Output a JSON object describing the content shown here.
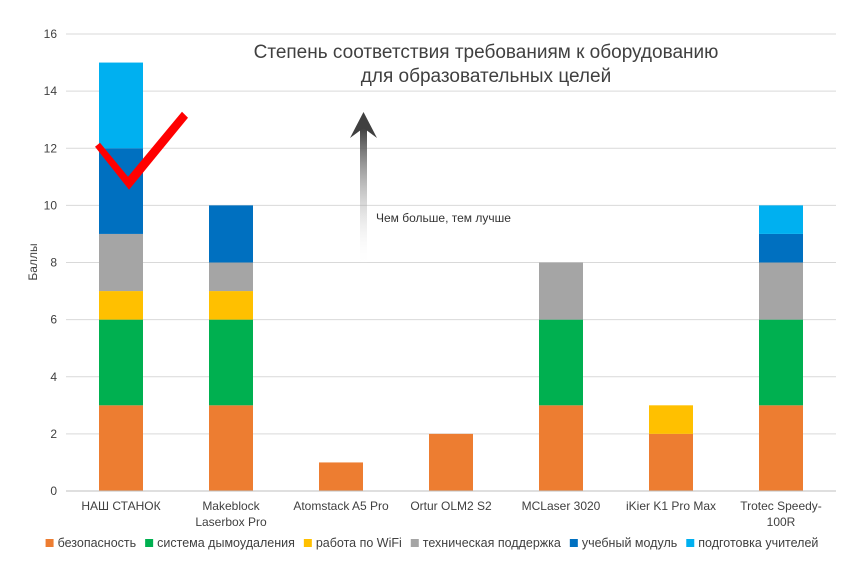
{
  "chart_data": {
    "type": "bar",
    "stacked": true,
    "title_lines": [
      "Степень соответствия требованиям к оборудованию",
      "для образовательных целей"
    ],
    "annotation": "Чем больше, тем лучше",
    "ylabel": "Баллы",
    "xlabel": "",
    "ylim": [
      0,
      16
    ],
    "yticks": [
      0,
      2,
      4,
      6,
      8,
      10,
      12,
      14,
      16
    ],
    "grid": true,
    "legend_position": "bottom",
    "categories": [
      [
        "НАШ СТАНОК"
      ],
      [
        "Makeblock",
        "Laserbox Pro"
      ],
      [
        "Atomstack A5 Pro"
      ],
      [
        "Ortur OLM2 S2"
      ],
      [
        "MCLaser 3020"
      ],
      [
        "iKier K1 Pro Max"
      ],
      [
        "Trotec Speedy-",
        "100R"
      ]
    ],
    "series": [
      {
        "name": "безопасность",
        "color": "#ED7D31",
        "values": [
          3,
          3,
          1,
          2,
          3,
          2,
          3
        ]
      },
      {
        "name": "система дымоудаления",
        "color": "#00B050",
        "values": [
          3,
          3,
          0,
          0,
          3,
          0,
          3
        ]
      },
      {
        "name": "работа по WiFi",
        "color": "#FFC000",
        "values": [
          1,
          1,
          0,
          0,
          0,
          1,
          0
        ]
      },
      {
        "name": "техническая поддержка",
        "color": "#A5A5A5",
        "values": [
          2,
          1,
          0,
          0,
          2,
          0,
          2
        ]
      },
      {
        "name": "учебный модуль",
        "color": "#0070C0",
        "values": [
          3,
          2,
          0,
          0,
          0,
          0,
          1
        ]
      },
      {
        "name": "подготовка учителей",
        "color": "#00B0F0",
        "values": [
          3,
          0,
          0,
          0,
          0,
          0,
          1
        ]
      }
    ],
    "highlight_mark": {
      "category_index": 0,
      "icon": "checkmark-icon",
      "color": "#FF0000"
    },
    "arrow_icon": "up-arrow-icon"
  }
}
